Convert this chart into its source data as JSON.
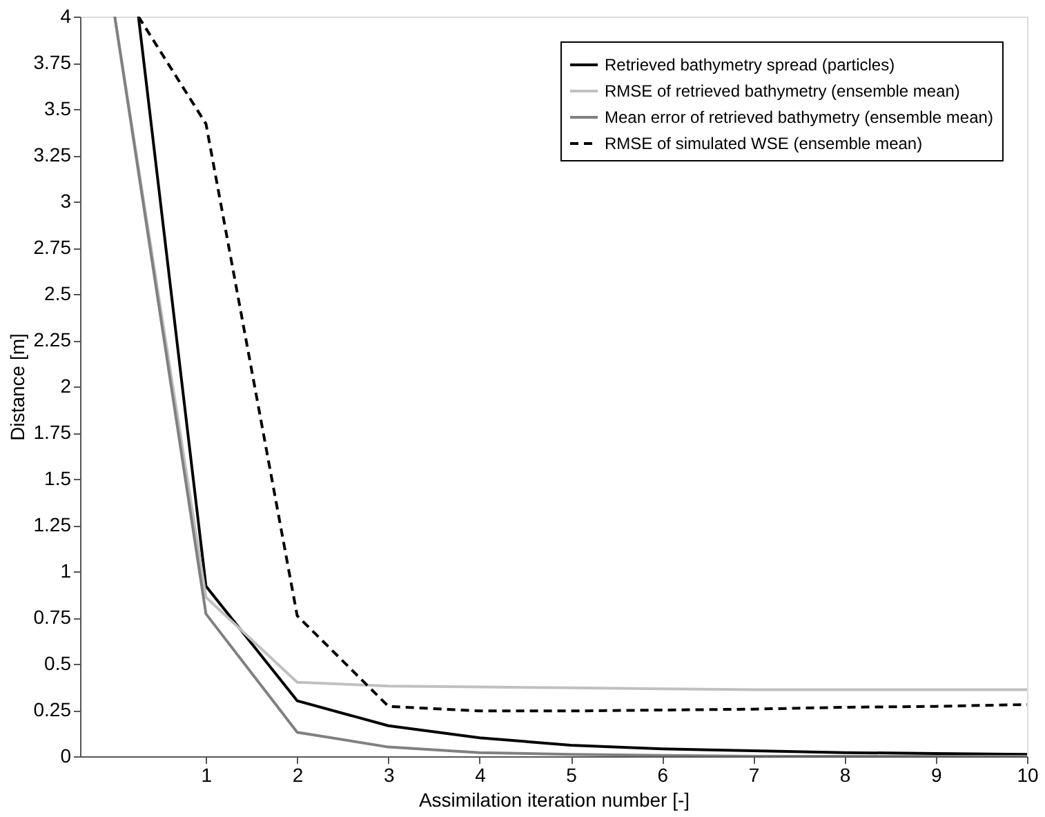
{
  "chart_data": {
    "type": "line",
    "xlabel": "Assimilation iteration number [-]",
    "ylabel": "Distance [m]",
    "xlim": [
      -0.38,
      10
    ],
    "xticks": [
      1,
      2,
      3,
      4,
      5,
      6,
      7,
      8,
      9,
      10
    ],
    "ylim": [
      0,
      4
    ],
    "yticks": [
      0,
      0.25,
      0.5,
      0.75,
      1,
      1.25,
      1.5,
      1.75,
      2,
      2.25,
      2.5,
      2.75,
      3,
      3.25,
      3.5,
      3.75,
      4
    ],
    "grid": false,
    "legend": "top right",
    "marker": "none",
    "series": [
      {
        "name": "Retrieved bathymetry spread (particles)",
        "color": "#000000",
        "line_style": "solid",
        "x": [
          0.26,
          1,
          2,
          3,
          4,
          5,
          6,
          7,
          8,
          9,
          10
        ],
        "values": [
          4,
          0.92,
          0.3,
          0.165,
          0.1,
          0.06,
          0.04,
          0.03,
          0.02,
          0.015,
          0.01
        ]
      },
      {
        "name": "RMSE of retrieved bathymetry (ensemble mean)",
        "color": "#c0c0c0",
        "line_style": "solid",
        "x": [
          0,
          1,
          2,
          3,
          4,
          5,
          6,
          7,
          8,
          9,
          10
        ],
        "values": [
          4,
          0.86,
          0.4,
          0.38,
          0.375,
          0.37,
          0.365,
          0.36,
          0.36,
          0.36,
          0.36
        ]
      },
      {
        "name": "Mean error of retrieved bathymetry (ensemble mean)",
        "color": "#808080",
        "line_style": "solid",
        "x": [
          0,
          1,
          2,
          3,
          4,
          5,
          6,
          7,
          8,
          9,
          10
        ],
        "values": [
          4,
          0.77,
          0.13,
          0.05,
          0.02,
          0.01,
          0.005,
          0,
          0,
          0,
          0
        ]
      },
      {
        "name": "RMSE of simulated WSE (ensemble mean)",
        "color": "#000000",
        "line_style": "dashed",
        "x": [
          0.26,
          1,
          2,
          3,
          4,
          5,
          6,
          7,
          8,
          9,
          10
        ],
        "values": [
          4,
          3.42,
          0.76,
          0.27,
          0.245,
          0.245,
          0.25,
          0.255,
          0.265,
          0.27,
          0.28
        ]
      }
    ]
  }
}
